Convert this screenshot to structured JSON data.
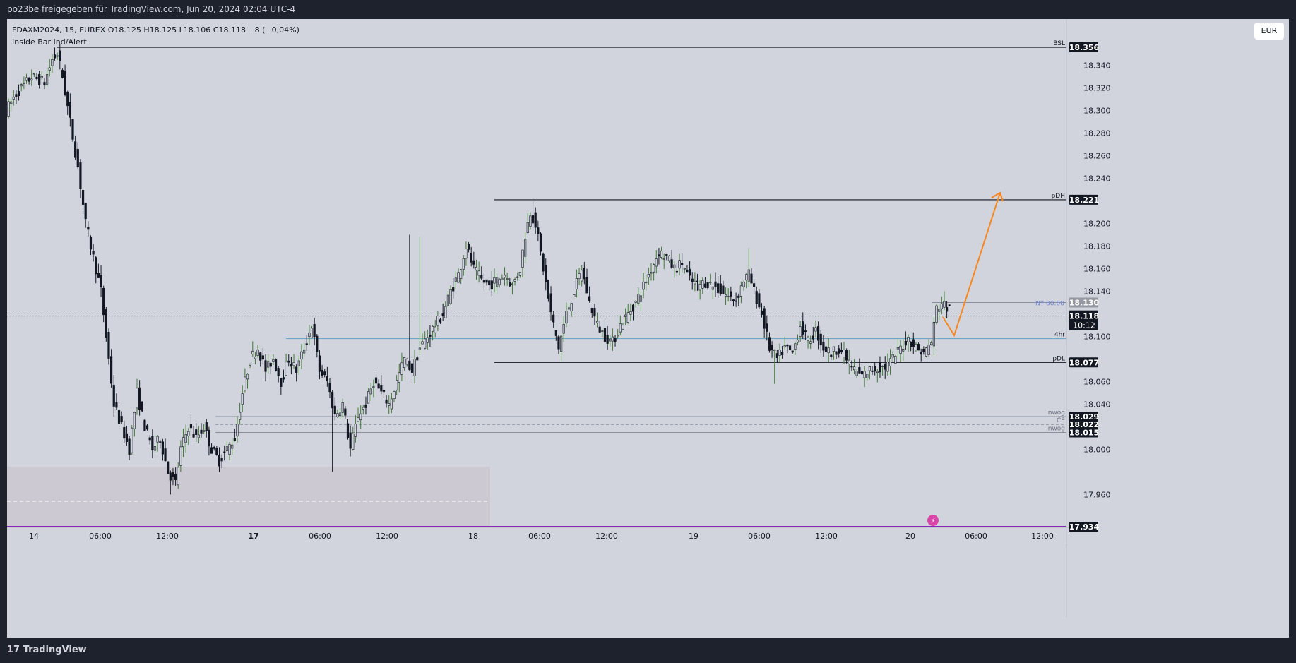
{
  "header": {
    "title": "po23be freigegeben für TradingView.com, Jun 20, 2024 02:04 UTC-4"
  },
  "legend": {
    "symbol_line": "FDAXM2024, 15, EUREX  O18.125  H18.125  L18.106  C18.118  −8 (−0,04%)",
    "indicator": "Inside Bar Ind/Alert"
  },
  "currency_button": "EUR",
  "footer": {
    "brand": "TradingView",
    "brand_mark": "17"
  },
  "colors": {
    "background": "#d1d4dc",
    "candle": "#131722",
    "up_wick": "#3f7a33",
    "level_line": "#131722",
    "hourly_line": "#5ba3c9",
    "nwog_line": "#8a8f9c",
    "arrow": "#f7861e",
    "ny_line": "#8a8f9c",
    "ny_label": "#6f84d6",
    "purple_line": "#8a23b8",
    "box_fill": "#cdc9d2"
  },
  "chart_data": {
    "type": "candlestick",
    "symbol": "FDAXM2024",
    "interval": "15",
    "exchange": "EUREX",
    "ohlc_last": {
      "open": 18.125,
      "high": 18.125,
      "low": 18.106,
      "close": 18.118,
      "change": "−8 (−0,04%)"
    },
    "y_axis": {
      "ylim": [
        17.922,
        18.37
      ],
      "ticks": [
        "18.340",
        "18.320",
        "18.300",
        "18.280",
        "18.260",
        "18.240",
        "18.200",
        "18.180",
        "18.160",
        "18.140",
        "18.100",
        "18.060",
        "18.040",
        "18.000",
        "17.960"
      ]
    },
    "x_axis": {
      "ticks": [
        {
          "label": "14",
          "bold": false
        },
        {
          "label": "06:00",
          "bold": false
        },
        {
          "label": "12:00",
          "bold": false
        },
        {
          "label": "17",
          "bold": true
        },
        {
          "label": "06:00",
          "bold": false
        },
        {
          "label": "12:00",
          "bold": false
        },
        {
          "label": "18",
          "bold": false
        },
        {
          "label": "06:00",
          "bold": false
        },
        {
          "label": "12:00",
          "bold": false
        },
        {
          "label": "19",
          "bold": false
        },
        {
          "label": "06:00",
          "bold": false
        },
        {
          "label": "12:00",
          "bold": false
        },
        {
          "label": "20",
          "bold": false
        },
        {
          "label": "06:00",
          "bold": false
        },
        {
          "label": "12:00",
          "bold": false
        }
      ]
    },
    "levels": [
      {
        "name": "BSL",
        "price_label": "18.356",
        "value": 18.356
      },
      {
        "name": "pDH",
        "price_label": "18.221",
        "value": 18.221
      },
      {
        "name": "pDL",
        "price_label": "18.077",
        "value": 18.077
      },
      {
        "name": "nwog",
        "price_label": "18.029",
        "value": 18.029
      },
      {
        "name": "CE",
        "price_label": "18.022",
        "value": 18.022
      },
      {
        "name": "nwog",
        "price_label": "18.015",
        "value": 18.015
      },
      {
        "name": "4hr",
        "price_label": "",
        "value": 18.098
      },
      {
        "name": "NY 00:00",
        "price_label": "18.130",
        "value": 18.13
      }
    ],
    "current": {
      "price": "18.118",
      "countdown": "10:12",
      "value": 18.118
    },
    "bottom_level": {
      "price_label": "17.934",
      "value": 17.934
    },
    "anchors": [
      [
        0,
        18.3
      ],
      [
        4,
        18.315
      ],
      [
        10,
        18.33
      ],
      [
        15,
        18.325
      ],
      [
        18,
        18.345
      ],
      [
        20,
        18.35
      ],
      [
        22,
        18.33
      ],
      [
        25,
        18.29
      ],
      [
        28,
        18.25
      ],
      [
        31,
        18.2
      ],
      [
        34,
        18.17
      ],
      [
        37,
        18.14
      ],
      [
        40,
        18.08
      ],
      [
        42,
        18.04
      ],
      [
        45,
        18.02
      ],
      [
        48,
        18.0
      ],
      [
        51,
        18.05
      ],
      [
        54,
        18.02
      ],
      [
        57,
        18.0
      ],
      [
        60,
        18.01
      ],
      [
        63,
        17.98
      ],
      [
        66,
        17.97
      ],
      [
        68,
        18.0
      ],
      [
        71,
        18.02
      ],
      [
        74,
        18.01
      ],
      [
        77,
        18.02
      ],
      [
        80,
        18.0
      ],
      [
        83,
        17.99
      ],
      [
        86,
        18.0
      ],
      [
        89,
        18.01
      ],
      [
        92,
        18.05
      ],
      [
        95,
        18.08
      ],
      [
        98,
        18.09
      ],
      [
        101,
        18.07
      ],
      [
        104,
        18.08
      ],
      [
        107,
        18.06
      ],
      [
        110,
        18.08
      ],
      [
        113,
        18.07
      ],
      [
        116,
        18.09
      ],
      [
        119,
        18.11
      ],
      [
        122,
        18.07
      ],
      [
        125,
        18.06
      ],
      [
        128,
        18.03
      ],
      [
        131,
        18.04
      ],
      [
        134,
        18.0
      ],
      [
        137,
        18.03
      ],
      [
        140,
        18.04
      ],
      [
        143,
        18.06
      ],
      [
        146,
        18.05
      ],
      [
        149,
        18.04
      ],
      [
        152,
        18.06
      ],
      [
        155,
        18.08
      ],
      [
        158,
        18.07
      ],
      [
        161,
        18.09
      ],
      [
        164,
        18.1
      ],
      [
        167,
        18.11
      ],
      [
        170,
        18.12
      ],
      [
        173,
        18.14
      ],
      [
        176,
        18.155
      ],
      [
        179,
        18.18
      ],
      [
        182,
        18.16
      ],
      [
        185,
        18.15
      ],
      [
        188,
        18.145
      ],
      [
        191,
        18.15
      ],
      [
        194,
        18.155
      ],
      [
        197,
        18.145
      ],
      [
        200,
        18.16
      ],
      [
        202,
        18.19
      ],
      [
        204,
        18.21
      ],
      [
        206,
        18.2
      ],
      [
        209,
        18.16
      ],
      [
        212,
        18.12
      ],
      [
        215,
        18.09
      ],
      [
        218,
        18.12
      ],
      [
        221,
        18.14
      ],
      [
        224,
        18.16
      ],
      [
        227,
        18.13
      ],
      [
        230,
        18.11
      ],
      [
        233,
        18.1
      ],
      [
        236,
        18.095
      ],
      [
        239,
        18.11
      ],
      [
        242,
        18.12
      ],
      [
        245,
        18.13
      ],
      [
        248,
        18.145
      ],
      [
        251,
        18.16
      ],
      [
        254,
        18.175
      ],
      [
        257,
        18.17
      ],
      [
        260,
        18.16
      ],
      [
        263,
        18.165
      ],
      [
        266,
        18.15
      ],
      [
        269,
        18.145
      ],
      [
        272,
        18.148
      ],
      [
        275,
        18.145
      ],
      [
        278,
        18.14
      ],
      [
        281,
        18.135
      ],
      [
        284,
        18.132
      ],
      [
        287,
        18.15
      ],
      [
        289,
        18.155
      ],
      [
        291,
        18.14
      ],
      [
        294,
        18.12
      ],
      [
        297,
        18.09
      ],
      [
        300,
        18.08
      ],
      [
        303,
        18.09
      ],
      [
        306,
        18.085
      ],
      [
        309,
        18.11
      ],
      [
        312,
        18.095
      ],
      [
        315,
        18.105
      ],
      [
        318,
        18.09
      ],
      [
        321,
        18.085
      ],
      [
        324,
        18.09
      ],
      [
        327,
        18.08
      ],
      [
        330,
        18.07
      ],
      [
        333,
        18.065
      ],
      [
        336,
        18.07
      ],
      [
        339,
        18.072
      ],
      [
        342,
        18.073
      ],
      [
        345,
        18.08
      ],
      [
        348,
        18.09
      ],
      [
        351,
        18.098
      ],
      [
        354,
        18.09
      ],
      [
        357,
        18.085
      ],
      [
        360,
        18.095
      ],
      [
        362,
        18.125
      ],
      [
        364,
        18.13
      ],
      [
        366,
        18.125
      ]
    ],
    "wick_overrides": [
      [
        20,
        18.359,
        null
      ],
      [
        63,
        null,
        17.96
      ],
      [
        204,
        18.222,
        null
      ],
      [
        215,
        null,
        18.078
      ],
      [
        288,
        18.178,
        null
      ],
      [
        298,
        null,
        18.058
      ],
      [
        335,
        null,
        18.062
      ],
      [
        364,
        18.14,
        null
      ],
      [
        66,
        null,
        17.965
      ],
      [
        126,
        null,
        17.98
      ],
      [
        156,
        18.19,
        null
      ],
      [
        160,
        18.188,
        null
      ]
    ]
  }
}
